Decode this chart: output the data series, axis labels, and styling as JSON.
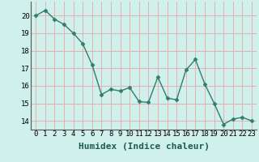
{
  "x": [
    0,
    1,
    2,
    3,
    4,
    5,
    6,
    7,
    8,
    9,
    10,
    11,
    12,
    13,
    14,
    15,
    16,
    17,
    18,
    19,
    20,
    21,
    22,
    23
  ],
  "y": [
    20.0,
    20.3,
    19.8,
    19.5,
    19.0,
    18.4,
    17.2,
    15.5,
    15.8,
    15.7,
    15.9,
    15.1,
    15.05,
    16.5,
    15.3,
    15.2,
    16.9,
    17.5,
    16.1,
    15.0,
    13.8,
    14.1,
    14.2,
    14.0
  ],
  "line_color": "#2e7d6e",
  "marker": "D",
  "markersize": 2.5,
  "linewidth": 1.0,
  "bg_color": "#cff0eb",
  "grid_color": "#e8b0b0",
  "xlabel": "Humidex (Indice chaleur)",
  "xlabel_fontsize": 8,
  "tick_fontsize": 6.5,
  "ylim": [
    13.5,
    20.8
  ],
  "yticks": [
    14,
    15,
    16,
    17,
    18,
    19,
    20
  ]
}
